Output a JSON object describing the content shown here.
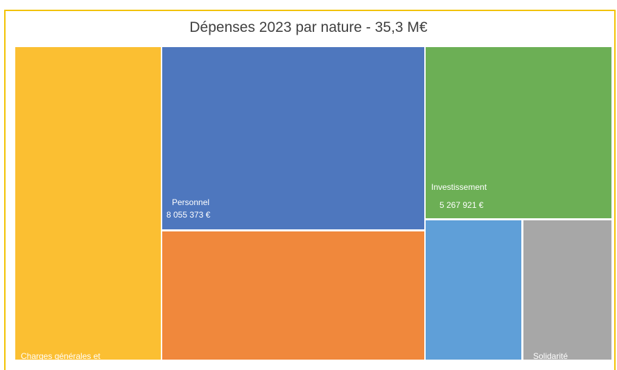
{
  "chart_data": {
    "type": "treemap",
    "title": "Dépenses 2023 par nature - 35,3 M€",
    "tiles": [
      {
        "key": "charges",
        "name": "Charges générales et",
        "value_label": "",
        "color": "#fbbf32"
      },
      {
        "key": "personnel",
        "name": "Personnel",
        "value_label": "8 055 373 €",
        "value": 8055373,
        "color": "#4e77be"
      },
      {
        "key": "orange",
        "name": "",
        "value_label": "",
        "color": "#f0883c"
      },
      {
        "key": "investissement",
        "name": "Investissement",
        "value_label": "5 267 921 €",
        "value": 5267921,
        "color": "#6caf55"
      },
      {
        "key": "lightblue",
        "name": "",
        "value_label": "",
        "color": "#5f9fd8"
      },
      {
        "key": "solidarite",
        "name": "Solidarité",
        "value_label": "",
        "color": "#a7a7a7"
      }
    ]
  }
}
